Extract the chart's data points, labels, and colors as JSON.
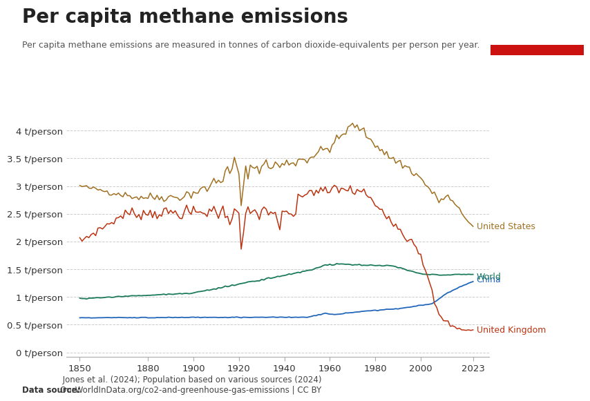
{
  "title": "Per capita methane emissions",
  "subtitle": "Per capita methane emissions are measured in tonnes of carbon dioxide-equivalents per person per year.",
  "datasource_bold": "Data source:",
  "datasource_rest": " Jones et al. (2024); Population based on various sources (2024)\nOurWorldInData.org/co2-and-greenhouse-gas-emissions | CC BY",
  "background_color": "#ffffff",
  "plot_bg_color": "#ffffff",
  "colors": {
    "United States": "#a07020",
    "United Kingdom": "#bb3311",
    "World": "#1a7a5a",
    "China": "#2266bb"
  },
  "yticks": [
    0,
    0.5,
    1.0,
    1.5,
    2.0,
    2.5,
    3.0,
    3.5,
    4.0
  ],
  "ytick_labels": [
    "0 t/person",
    "0.5 t/person",
    "1 t/person",
    "1.5 t/person",
    "2 t/person",
    "2.5 t/person",
    "3 t/person",
    "3.5 t/person",
    "4 t/person"
  ],
  "xticks": [
    1850,
    1880,
    1900,
    1920,
    1940,
    1960,
    1980,
    2000,
    2023
  ],
  "xlim": [
    1844,
    2030
  ],
  "ylim": [
    -0.08,
    4.4
  ],
  "owid_box_color": "#1a3a5c",
  "owid_bar_color": "#cc1111"
}
